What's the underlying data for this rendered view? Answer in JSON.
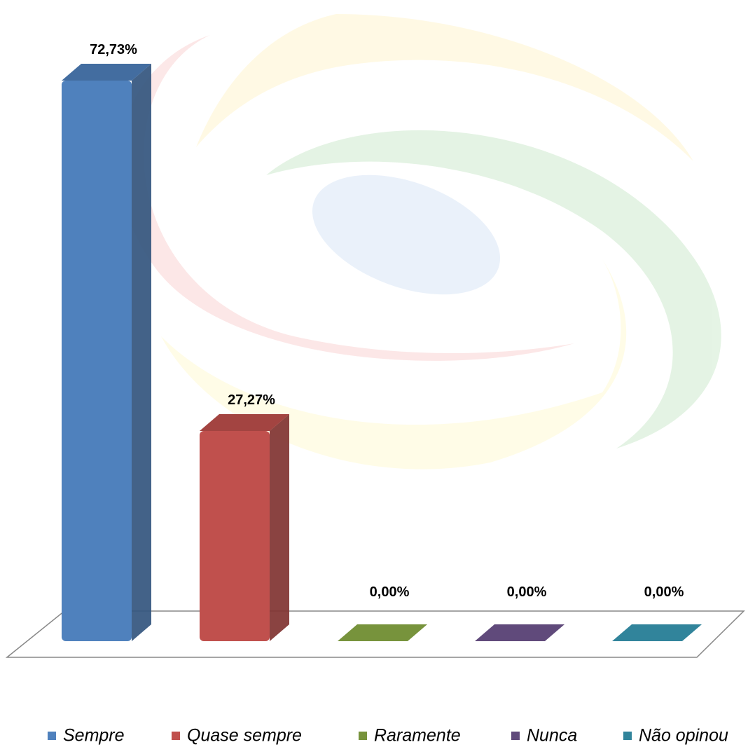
{
  "chart_data": {
    "type": "bar3d",
    "series": [
      {
        "name": "Sempre",
        "color": "#4f81bd",
        "values": [
          72.73
        ],
        "value_labels": [
          "72,73%"
        ]
      },
      {
        "name": "Quase sempre",
        "color": "#c0504d",
        "values": [
          27.27
        ],
        "value_labels": [
          "27,27%"
        ]
      },
      {
        "name": "Raramente",
        "color": "#77933c",
        "values": [
          0
        ],
        "value_labels": [
          "0,00%"
        ]
      },
      {
        "name": "Nunca",
        "color": "#604a7b",
        "values": [
          0
        ],
        "value_labels": [
          "0,00%"
        ]
      },
      {
        "name": "Não opinou",
        "color": "#31849b",
        "values": [
          0
        ],
        "value_labels": [
          "0,00%"
        ]
      }
    ],
    "legend": "bottom"
  }
}
